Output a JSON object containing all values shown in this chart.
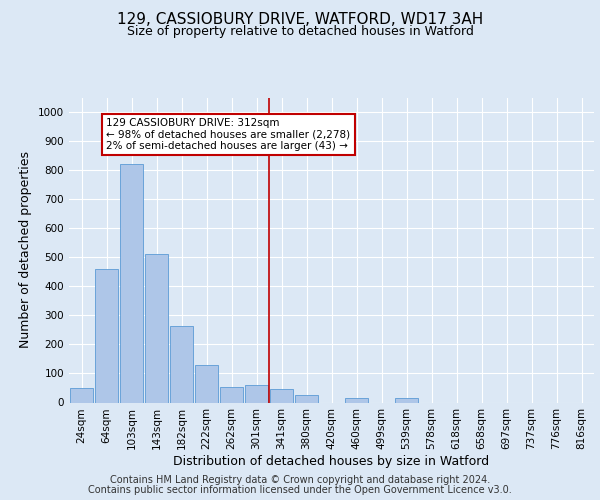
{
  "title": "129, CASSIOBURY DRIVE, WATFORD, WD17 3AH",
  "subtitle": "Size of property relative to detached houses in Watford",
  "xlabel": "Distribution of detached houses by size in Watford",
  "ylabel": "Number of detached properties",
  "footer_line1": "Contains HM Land Registry data © Crown copyright and database right 2024.",
  "footer_line2": "Contains public sector information licensed under the Open Government Licence v3.0.",
  "bins": [
    "24sqm",
    "64sqm",
    "103sqm",
    "143sqm",
    "182sqm",
    "222sqm",
    "262sqm",
    "301sqm",
    "341sqm",
    "380sqm",
    "420sqm",
    "460sqm",
    "499sqm",
    "539sqm",
    "578sqm",
    "618sqm",
    "658sqm",
    "697sqm",
    "737sqm",
    "776sqm",
    "816sqm"
  ],
  "values": [
    50,
    460,
    820,
    510,
    265,
    130,
    55,
    60,
    45,
    25,
    0,
    15,
    0,
    15,
    0,
    0,
    0,
    0,
    0,
    0,
    0
  ],
  "bar_color": "#aec6e8",
  "bar_edge_color": "#5b9bd5",
  "vline_x": 7.5,
  "vline_color": "#c00000",
  "annotation_text": "129 CASSIOBURY DRIVE: 312sqm\n← 98% of detached houses are smaller (2,278)\n2% of semi-detached houses are larger (43) →",
  "annotation_box_color": "#c00000",
  "ylim": [
    0,
    1050
  ],
  "yticks": [
    0,
    100,
    200,
    300,
    400,
    500,
    600,
    700,
    800,
    900,
    1000
  ],
  "background_color": "#dce8f5",
  "plot_bg_color": "#dce8f5",
  "grid_color": "#ffffff",
  "title_fontsize": 11,
  "subtitle_fontsize": 9,
  "axis_label_fontsize": 9,
  "tick_fontsize": 7.5,
  "footer_fontsize": 7
}
